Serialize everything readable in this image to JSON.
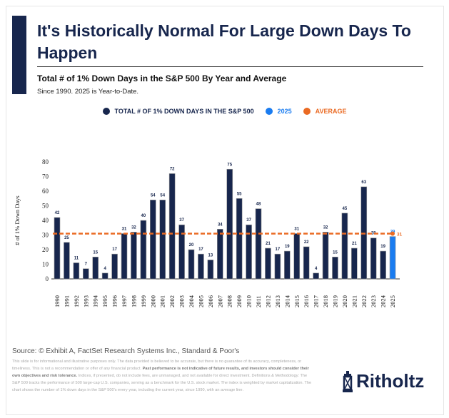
{
  "header": {
    "title": "It's Historically Normal For Large Down Days To Happen",
    "subtitle": "Total # of 1% Down Days in the S&P 500 By Year and Average",
    "note": "Since 1990. 2025 is Year-to-Date."
  },
  "chart_data": {
    "type": "bar",
    "ylabel": "# of 1% Down Days",
    "ylim": [
      0,
      80
    ],
    "yticks": [
      0,
      10,
      20,
      30,
      40,
      50,
      60,
      70,
      80
    ],
    "categories": [
      "1990",
      "1991",
      "1992",
      "1993",
      "1994",
      "1995",
      "1996",
      "1997",
      "1998",
      "1999",
      "2000",
      "2001",
      "2002",
      "2003",
      "2004",
      "2005",
      "2006",
      "2007",
      "2008",
      "2009",
      "2010",
      "2011",
      "2012",
      "2013",
      "2014",
      "2015",
      "2016",
      "2017",
      "2018",
      "2019",
      "2020",
      "2021",
      "2022",
      "2023",
      "2024",
      "2025"
    ],
    "values": [
      42,
      25,
      11,
      7,
      15,
      4,
      17,
      31,
      32,
      40,
      54,
      54,
      72,
      37,
      20,
      17,
      13,
      34,
      75,
      55,
      37,
      48,
      21,
      17,
      19,
      31,
      22,
      4,
      32,
      15,
      45,
      21,
      63,
      28,
      19,
      29
    ],
    "average": 31,
    "average_label": "31",
    "legend": [
      {
        "name": "TOTAL # OF 1% DOWN DAYS IN THE S&P 500",
        "color": "#17264d"
      },
      {
        "name": "2025",
        "color": "#1a7cf0"
      },
      {
        "name": "AVERAGE",
        "color": "#ea6a23"
      }
    ],
    "legend_position": "top",
    "grid": false
  },
  "footer": {
    "source": "Source: © Exhibit A, FactSet Research Systems Inc., Standard & Poor's",
    "disclaimer_1": "This slide is for informational and illustrative purposes only. The data provided is believed to be accurate, but there is no guarantee of its accuracy, completeness, or timeliness. This is not a recommendation or offer of any financial product. ",
    "disclaimer_bold": "Past performance is not indicative of future results, and investors should consider their own objectives and risk tolerance.",
    "disclaimer_2": " Indices, if presented, do not include fees, are unmanaged, and not available for direct investment. Definitions & Methodology: The S&P 500 tracks the performance of 500 large-cap U.S. companies, serving as a benchmark for the U.S. stock market. The index is weighted by market capitalization. The chart shows the number of 1% down days in the S&P 500's every year, including the current year, since 1990, with an average line.",
    "logo": "Ritholtz"
  }
}
